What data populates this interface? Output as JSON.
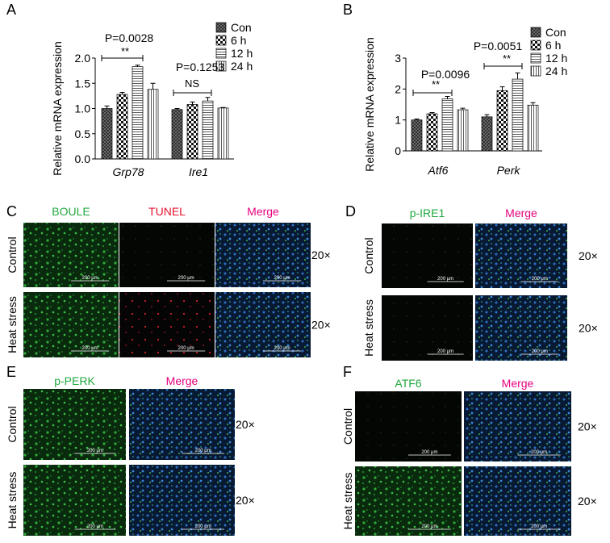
{
  "chart_data": [
    {
      "type": "bar",
      "panel": "A",
      "ylabel": "Relative mRNA expression",
      "categories": [
        "Grp78",
        "Ire1"
      ],
      "series": [
        {
          "name": "Con",
          "values": [
            1.0,
            0.98
          ],
          "errors": [
            0.05,
            0.02
          ]
        },
        {
          "name": "6 h",
          "values": [
            1.28,
            1.08
          ],
          "errors": [
            0.04,
            0.05
          ]
        },
        {
          "name": "12 h",
          "values": [
            1.83,
            1.15
          ],
          "errors": [
            0.03,
            0.07
          ]
        },
        {
          "name": "24 h",
          "values": [
            1.38,
            1.01
          ],
          "errors": [
            0.12,
            0.01
          ]
        }
      ],
      "ylim": [
        0,
        2.0
      ],
      "yticks": [
        {
          "value": 0,
          "label": "0.0"
        },
        0.5,
        {
          "value": 1,
          "label": "1.0"
        },
        1.5,
        {
          "value": 2,
          "label": "2.0"
        }
      ],
      "annotations": [
        "P=0.0028",
        "**",
        "P=0.1253",
        "NS"
      ]
    },
    {
      "type": "bar",
      "panel": "B",
      "ylabel": "Relative mRNA expression",
      "categories": [
        "Atf6",
        "Perk"
      ],
      "series": [
        {
          "name": "Con",
          "values": [
            1.0,
            1.1
          ],
          "errors": [
            0.03,
            0.07
          ]
        },
        {
          "name": "6 h",
          "values": [
            1.2,
            1.95
          ],
          "errors": [
            0.04,
            0.12
          ]
        },
        {
          "name": "12 h",
          "values": [
            1.68,
            2.32
          ],
          "errors": [
            0.08,
            0.2
          ]
        },
        {
          "name": "24 h",
          "values": [
            1.33,
            1.48
          ],
          "errors": [
            0.05,
            0.08
          ]
        }
      ],
      "ylim": [
        0,
        3
      ],
      "yticks": [
        0,
        1,
        2,
        3
      ],
      "annotations": [
        "P=0.0096",
        "**",
        "P=0.0051",
        "**"
      ]
    }
  ],
  "panels": [
    {
      "label": "C",
      "columns": [
        "BOULE",
        "TUNEL",
        "Merge"
      ],
      "rows": [
        "Control",
        "Heat stress"
      ],
      "magnification": "20×"
    },
    {
      "label": "D",
      "columns": [
        "p-IRE1",
        "Merge"
      ],
      "rows": [
        "Control",
        "Heat stress"
      ],
      "magnification": "20×"
    },
    {
      "label": "E",
      "columns": [
        "p-PERK",
        "Merge"
      ],
      "rows": [
        "Control",
        "Heat stress"
      ],
      "magnification": "20×"
    },
    {
      "label": "F",
      "columns": [
        "ATF6",
        "Merge"
      ],
      "rows": [
        "Control",
        "Heat stress"
      ],
      "magnification": "20×"
    }
  ],
  "scale_bar": "200 μm"
}
